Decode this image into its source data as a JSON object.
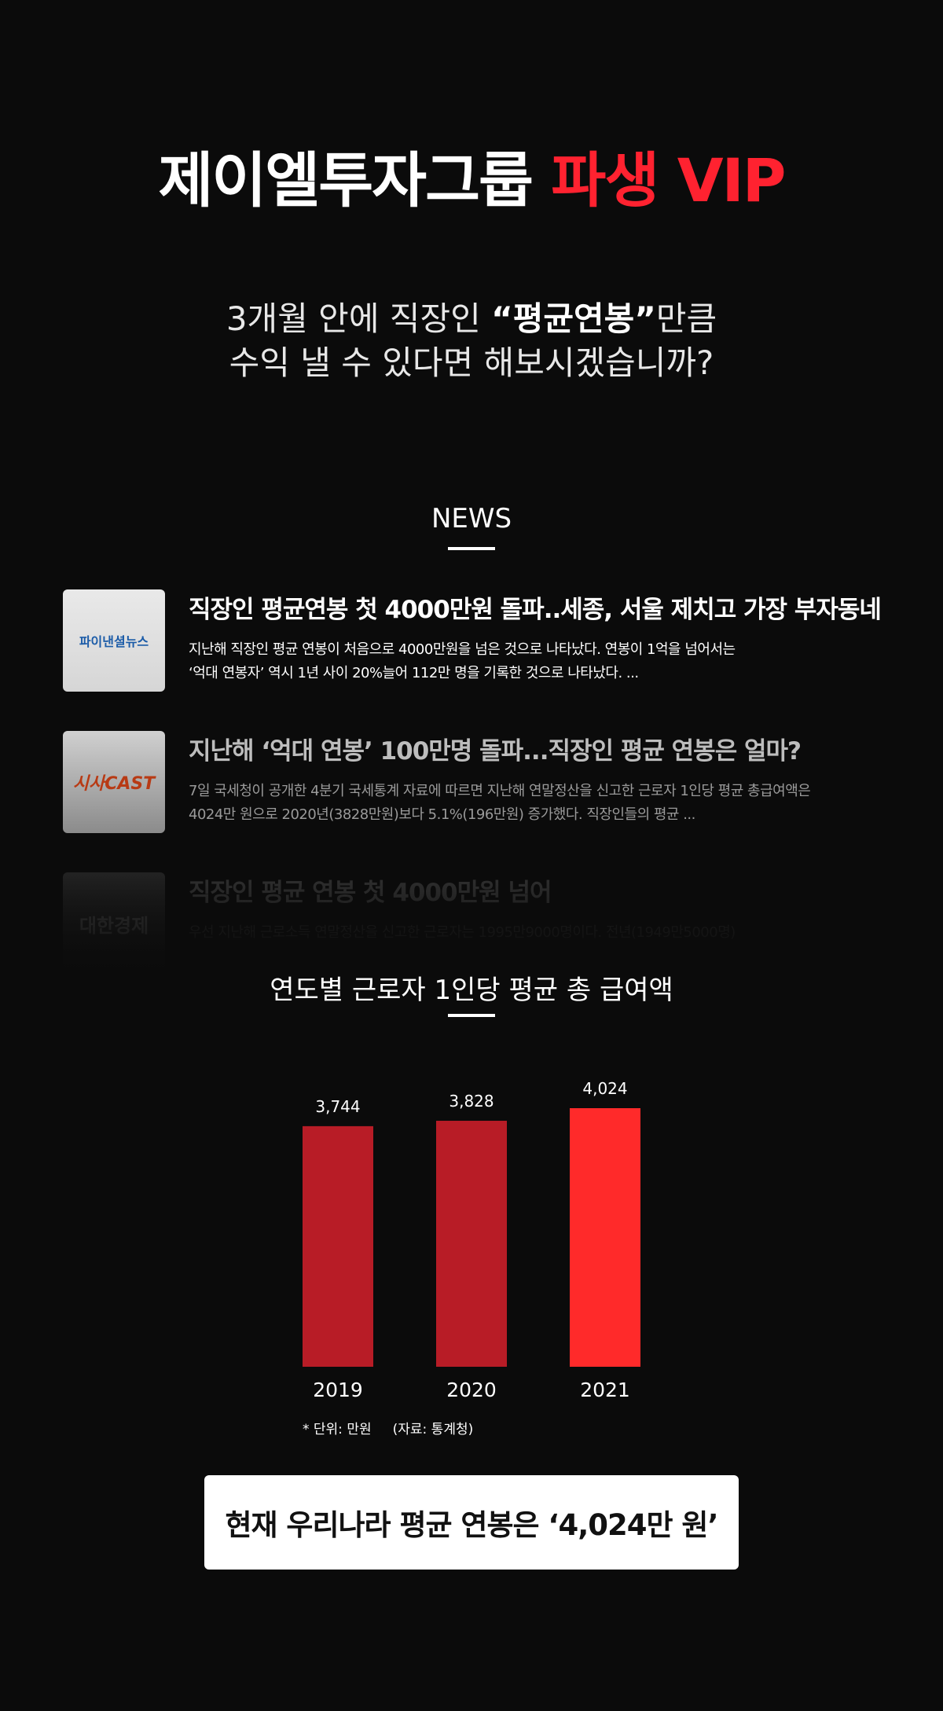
{
  "hero": {
    "title_white": "제이엘투자그룹",
    "title_red": "파생 VIP"
  },
  "subtitle": {
    "line1_pre": "3개월 안에 직장인 ",
    "line1_bold": "“평균연봉”",
    "line1_post": "만큼",
    "line2": "수익 낼 수 있다면 해보시겠습니까?"
  },
  "news": {
    "heading": "NEWS",
    "items": [
      {
        "logo": "파이낸셜뉴스",
        "title": "직장인 평균연봉 첫 4000만원 돌파..세종, 서울 제치고 가장 부자동네",
        "body_line1": "지난해 직장인 평균 연봉이 처음으로 4000만원을 넘은 것으로 나타났다. 연봉이 1억을 넘어서는",
        "body_line2": " ‘억대 연봉자’ 역시 1년 사이 20%늘어 112만 명을 기록한 것으로 나타났다. ..."
      },
      {
        "logo": "시사CAST",
        "title": "지난해 ‘억대 연봉’ 100만명 돌파...직장인 평균 연봉은 얼마?",
        "body_line1": "7일 국세청이 공개한 4분기 국세통계 자료에 따르면 지난해 연말정산을 신고한 근로자 1인당 평균 총급여액은",
        "body_line2": "4024만 원으로 2020년(3828만원)보다 5.1%(196만원) 증가했다. 직장인들의 평균 ..."
      },
      {
        "logo": "대한경제",
        "title": "직장인 평균 연봉 첫 4000만원 넘어",
        "body_line1": "우선 지난해 근로소득 연말정산을 신고한 근로자는 1995만9000명이다. 전년(1949만5000명)",
        "body_line2": ""
      }
    ]
  },
  "chart_section": {
    "heading": "연도별 근로자 1인당 평균 총 급여액",
    "note_unit": "* 단위: 만원",
    "note_source": "(자료: 통계청)"
  },
  "chart_data": {
    "type": "bar",
    "categories": [
      "2019",
      "2020",
      "2021"
    ],
    "values": [
      3744,
      3828,
      4024
    ],
    "value_labels": [
      "3,744",
      "3,828",
      "4,024"
    ],
    "highlight_index": 2,
    "colors": {
      "default": "#b81c26",
      "highlight": "#ff2a2a"
    }
  },
  "cta": {
    "text": "현재 우리나라 평균 연봉은 ‘4,024만 원’"
  }
}
